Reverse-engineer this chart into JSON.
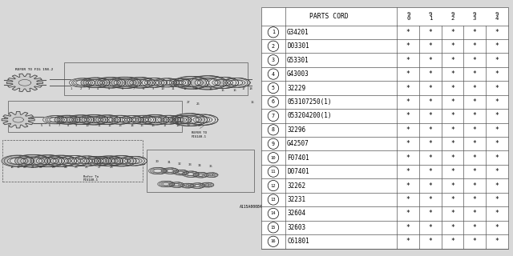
{
  "diagram_label": "A115A00084",
  "bg_color": "#d8d8d8",
  "table_bg": "#ffffff",
  "rows": [
    {
      "num": 1,
      "code": "G34201",
      "stars": [
        "*",
        "*",
        "*",
        "*",
        "*"
      ]
    },
    {
      "num": 2,
      "code": "D03301",
      "stars": [
        "*",
        "*",
        "*",
        "*",
        "*"
      ]
    },
    {
      "num": 3,
      "code": "G53301",
      "stars": [
        "*",
        "*",
        "*",
        "*",
        "*"
      ]
    },
    {
      "num": 4,
      "code": "G43003",
      "stars": [
        "*",
        "*",
        "*",
        "*",
        "*"
      ]
    },
    {
      "num": 5,
      "code": "32229",
      "stars": [
        "*",
        "*",
        "*",
        "*",
        "*"
      ]
    },
    {
      "num": 6,
      "code": "053107250(1)",
      "stars": [
        "*",
        "*",
        "*",
        "*",
        "*"
      ]
    },
    {
      "num": 7,
      "code": "053204200(1)",
      "stars": [
        "*",
        "*",
        "*",
        "*",
        "*"
      ]
    },
    {
      "num": 8,
      "code": "32296",
      "stars": [
        "*",
        "*",
        "*",
        "*",
        "*"
      ]
    },
    {
      "num": 9,
      "code": "G42507",
      "stars": [
        "*",
        "*",
        "*",
        "*",
        "*"
      ]
    },
    {
      "num": 10,
      "code": "F07401",
      "stars": [
        "*",
        "*",
        "*",
        "*",
        "*"
      ]
    },
    {
      "num": 11,
      "code": "D07401",
      "stars": [
        "*",
        "*",
        "*",
        "*",
        "*"
      ]
    },
    {
      "num": 12,
      "code": "32262",
      "stars": [
        "*",
        "*",
        "*",
        "*",
        "*"
      ]
    },
    {
      "num": 13,
      "code": "32231",
      "stars": [
        "*",
        "*",
        "*",
        "*",
        "*"
      ]
    },
    {
      "num": 14,
      "code": "32604",
      "stars": [
        "*",
        "*",
        "*",
        "*",
        "*"
      ]
    },
    {
      "num": 15,
      "code": "32603",
      "stars": [
        "*",
        "*",
        "*",
        "*",
        "*"
      ]
    },
    {
      "num": 16,
      "code": "C61801",
      "stars": [
        "*",
        "*",
        "*",
        "*",
        "*"
      ]
    }
  ],
  "star_headers": [
    "9\n0",
    "9\n1",
    "9\n2",
    "9\n3",
    "9\n4"
  ],
  "font_color": "#000000",
  "lc": "#555555",
  "note1": "REFER TO FIG 198-2",
  "note2": "Refer To\nFIG140-1",
  "note3": "REFER TO\nFIG140-1"
}
